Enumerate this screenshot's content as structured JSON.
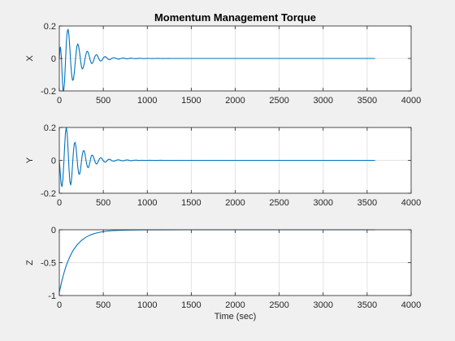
{
  "figure": {
    "background": "#f0f0f0",
    "axes_background": "#ffffff",
    "line_color": "#0072bd",
    "grid_color": "#e3e3e3",
    "axis_color": "#262626"
  },
  "chart_data": [
    {
      "type": "line",
      "title": "Momentum Management Torque",
      "xlabel": "",
      "ylabel": "X",
      "xlim": [
        0,
        4000
      ],
      "ylim": [
        -0.2,
        0.2
      ],
      "xticks": [
        0,
        500,
        1000,
        1500,
        2000,
        2500,
        3000,
        3500,
        4000
      ],
      "yticks": [
        -0.2,
        0,
        0.2
      ],
      "xtick_labels": [
        "0",
        "500",
        "1000",
        "1500",
        "2000",
        "2500",
        "3000",
        "3500",
        "4000"
      ],
      "ytick_labels": [
        "-0.2",
        "0",
        "0.2"
      ],
      "grid": true,
      "series": [
        {
          "x": [
            0,
            6,
            12,
            18,
            24,
            30,
            36,
            42,
            50,
            60,
            70,
            80,
            90,
            100,
            110,
            120,
            130,
            140,
            150,
            160,
            170,
            180,
            190,
            200,
            210,
            220,
            230,
            240,
            250,
            260,
            270,
            280,
            290,
            300,
            310,
            320,
            330,
            340,
            350,
            360,
            370,
            380,
            390,
            400,
            410,
            420,
            430,
            440,
            450,
            460,
            470,
            480,
            490,
            500,
            510,
            520,
            530,
            540,
            550,
            560,
            570,
            580,
            590,
            600,
            620,
            640,
            660,
            680,
            700,
            720,
            740,
            760,
            780,
            800,
            820,
            840,
            860,
            880,
            900,
            920,
            940,
            960,
            980,
            1000,
            1030,
            1060,
            1090,
            1120,
            1150,
            1180,
            1210,
            1240,
            1270,
            1300,
            1400,
            1600,
            2000,
            2500,
            3000,
            3590
          ],
          "y": [
            0,
            0.05,
            0.07,
            0.045,
            0,
            -0.07,
            -0.15,
            -0.195,
            -0.2,
            -0.14,
            -0.02,
            0.1,
            0.165,
            0.18,
            0.14,
            0.06,
            -0.03,
            -0.1,
            -0.135,
            -0.13,
            -0.09,
            -0.03,
            0.03,
            0.075,
            0.09,
            0.075,
            0.04,
            -0.005,
            -0.045,
            -0.065,
            -0.06,
            -0.04,
            -0.01,
            0.02,
            0.04,
            0.045,
            0.035,
            0.015,
            -0.008,
            -0.025,
            -0.032,
            -0.027,
            -0.013,
            0.005,
            0.018,
            0.023,
            0.02,
            0.01,
            -0.003,
            -0.012,
            -0.016,
            -0.014,
            -0.007,
            0.002,
            0.009,
            0.011,
            0.009,
            0.004,
            -0.002,
            -0.006,
            -0.008,
            -0.006,
            -0.002,
            0.002,
            0.005,
            0.002,
            -0.003,
            -0.004,
            0,
            0.003,
            0.002,
            -0.002,
            -0.002,
            0.001,
            0.002,
            0,
            -0.001,
            -0.001,
            0.001,
            0.001,
            0,
            -0.001,
            0,
            0.0005,
            0,
            -0.0005,
            0,
            0.0003,
            0,
            -0.0003,
            0,
            0.0002,
            0,
            0,
            0,
            0,
            0,
            0,
            0,
            0
          ]
        }
      ]
    },
    {
      "type": "line",
      "title": "",
      "xlabel": "",
      "ylabel": "Y",
      "xlim": [
        0,
        4000
      ],
      "ylim": [
        -0.2,
        0.2
      ],
      "xticks": [
        0,
        500,
        1000,
        1500,
        2000,
        2500,
        3000,
        3500,
        4000
      ],
      "yticks": [
        -0.2,
        0,
        0.2
      ],
      "xtick_labels": [
        "0",
        "500",
        "1000",
        "1500",
        "2000",
        "2500",
        "3000",
        "3500",
        "4000"
      ],
      "ytick_labels": [
        "-0.2",
        "0",
        "0.2"
      ],
      "grid": true,
      "series": [
        {
          "x": [
            0,
            10,
            20,
            30,
            40,
            50,
            60,
            70,
            80,
            90,
            100,
            110,
            120,
            130,
            140,
            150,
            160,
            170,
            180,
            190,
            200,
            210,
            220,
            230,
            240,
            250,
            260,
            270,
            280,
            290,
            300,
            310,
            320,
            330,
            340,
            350,
            360,
            370,
            380,
            390,
            400,
            410,
            420,
            430,
            440,
            450,
            460,
            470,
            480,
            490,
            500,
            510,
            520,
            530,
            540,
            550,
            560,
            570,
            580,
            590,
            600,
            620,
            640,
            660,
            680,
            700,
            720,
            740,
            760,
            780,
            800,
            820,
            840,
            860,
            880,
            900,
            920,
            940,
            960,
            980,
            1000,
            1030,
            1060,
            1090,
            1120,
            1150,
            1180,
            1210,
            1240,
            1270,
            1300,
            1400,
            1600,
            2000,
            2500,
            3000,
            3590
          ],
          "y": [
            0,
            -0.07,
            -0.14,
            -0.16,
            -0.12,
            -0.03,
            0.08,
            0.17,
            0.2,
            0.16,
            0.06,
            -0.05,
            -0.13,
            -0.15,
            -0.11,
            -0.03,
            0.05,
            0.1,
            0.11,
            0.08,
            0.02,
            -0.04,
            -0.08,
            -0.085,
            -0.06,
            -0.015,
            0.03,
            0.055,
            0.06,
            0.045,
            0.01,
            -0.02,
            -0.04,
            -0.045,
            -0.03,
            -0.005,
            0.02,
            0.032,
            0.03,
            0.018,
            0.002,
            -0.014,
            -0.022,
            -0.02,
            -0.01,
            0.003,
            0.012,
            0.016,
            0.014,
            0.006,
            -0.002,
            -0.008,
            -0.011,
            -0.009,
            -0.004,
            0.002,
            0.006,
            0.007,
            0.005,
            0.001,
            -0.003,
            -0.005,
            -0.002,
            0.003,
            0.003,
            -0.001,
            -0.003,
            -0.001,
            0.002,
            0.002,
            -0.001,
            -0.002,
            0,
            0.001,
            0.001,
            -0.001,
            0,
            0.0005,
            0,
            -0.0005,
            0,
            0.0003,
            0,
            -0.0003,
            0,
            0.0002,
            0,
            0,
            0,
            0,
            0,
            0,
            0,
            0,
            0,
            0,
            0
          ]
        }
      ]
    },
    {
      "type": "line",
      "title": "",
      "xlabel": "Time (sec)",
      "ylabel": "Z",
      "xlim": [
        0,
        4000
      ],
      "ylim": [
        -1,
        0
      ],
      "xticks": [
        0,
        500,
        1000,
        1500,
        2000,
        2500,
        3000,
        3500,
        4000
      ],
      "yticks": [
        -1,
        -0.5,
        0
      ],
      "xtick_labels": [
        "0",
        "500",
        "1000",
        "1500",
        "2000",
        "2500",
        "3000",
        "3500",
        "4000"
      ],
      "ytick_labels": [
        "-1",
        "-0.5",
        "0"
      ],
      "grid": true,
      "series": [
        {
          "x": [
            0,
            25,
            50,
            75,
            100,
            125,
            150,
            175,
            200,
            250,
            300,
            350,
            400,
            450,
            500,
            550,
            600,
            650,
            700,
            750,
            800,
            900,
            1000,
            1100,
            1200,
            1400,
            1700,
            2000,
            2500,
            3000,
            3590
          ],
          "y": [
            -0.95,
            -0.8,
            -0.67,
            -0.56,
            -0.47,
            -0.395,
            -0.33,
            -0.278,
            -0.233,
            -0.164,
            -0.115,
            -0.081,
            -0.057,
            -0.04,
            -0.028,
            -0.02,
            -0.014,
            -0.01,
            -0.007,
            -0.005,
            -0.0035,
            -0.0017,
            -0.0008,
            -0.0004,
            -0.0002,
            0,
            0,
            0,
            0,
            0,
            0
          ]
        }
      ]
    }
  ]
}
